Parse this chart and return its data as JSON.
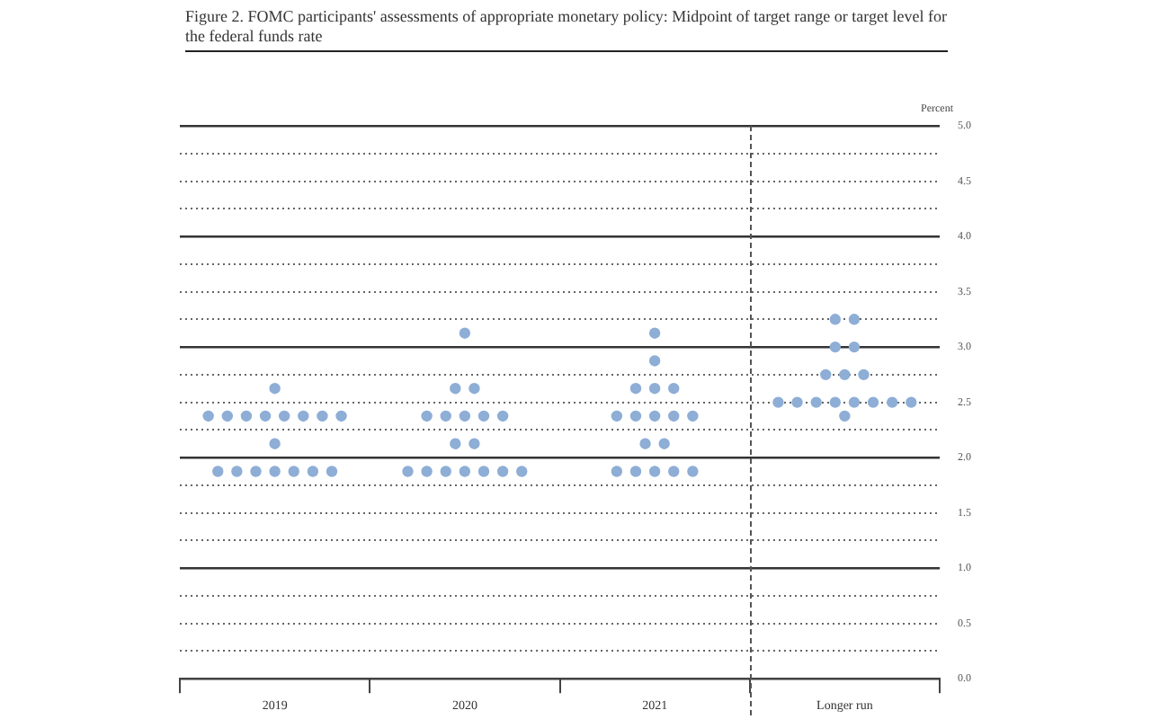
{
  "chart_data": {
    "type": "scatter",
    "title": "Figure 2. FOMC participants' assessments of appropriate monetary policy: Midpoint of target range or target level for the federal funds rate",
    "ylabel": "Percent",
    "categories": [
      "2019",
      "2020",
      "2021",
      "Longer run"
    ],
    "series": [
      {
        "color": "#8eaed6",
        "values": [
          2.625,
          3.125,
          3.125,
          3.25
        ]
      },
      {
        "color": "#8eaed6",
        "values": [
          2.375,
          2.625,
          2.875,
          3.25
        ]
      },
      {
        "color": "#8eaed6",
        "values": [
          2.375,
          2.625,
          2.625,
          3
        ]
      },
      {
        "color": "#8eaed6",
        "values": [
          2.375,
          2.375,
          2.625,
          3
        ]
      },
      {
        "color": "#8eaed6",
        "values": [
          2.375,
          2.375,
          2.625,
          2.75
        ]
      },
      {
        "color": "#8eaed6",
        "values": [
          2.375,
          2.375,
          2.375,
          2.75
        ]
      },
      {
        "color": "#8eaed6",
        "values": [
          2.375,
          2.375,
          2.375,
          2.75
        ]
      },
      {
        "color": "#8eaed6",
        "values": [
          2.375,
          2.375,
          2.375,
          2.5
        ]
      },
      {
        "color": "#8eaed6",
        "values": [
          2.375,
          2.125,
          2.375,
          2.5
        ]
      },
      {
        "color": "#8eaed6",
        "values": [
          2.125,
          2.125,
          2.375,
          2.5
        ]
      },
      {
        "color": "#8eaed6",
        "values": [
          1.875,
          1.875,
          2.125,
          2.5
        ]
      },
      {
        "color": "#8eaed6",
        "values": [
          1.875,
          1.875,
          2.125,
          2.5
        ]
      },
      {
        "color": "#8eaed6",
        "values": [
          1.875,
          1.875,
          1.875,
          2.5
        ]
      },
      {
        "color": "#8eaed6",
        "values": [
          1.875,
          1.875,
          1.875,
          2.5
        ]
      },
      {
        "color": "#8eaed6",
        "values": [
          1.875,
          1.875,
          1.875,
          2.5
        ]
      },
      {
        "color": "#8eaed6",
        "values": [
          1.875,
          1.875,
          1.875,
          2.375
        ]
      },
      {
        "color": "#8eaed6",
        "values": [
          1.875,
          1.875,
          1.875,
          null
        ]
      }
    ],
    "marker": "circle",
    "grid": "y",
    "ylim": [
      0,
      5
    ],
    "yticks": [
      {
        "value": 0,
        "label": "0.0"
      },
      {
        "value": 0.25,
        "label": null
      },
      {
        "value": 0.5,
        "label": "0.5"
      },
      {
        "value": 0.75,
        "label": null
      },
      {
        "value": 1,
        "label": "1.0"
      },
      {
        "value": 1.25,
        "label": null
      },
      {
        "value": 1.5,
        "label": "1.5"
      },
      {
        "value": 1.75,
        "label": null
      },
      {
        "value": 2,
        "label": "2.0"
      },
      {
        "value": 2.25,
        "label": null
      },
      {
        "value": 2.5,
        "label": "2.5"
      },
      {
        "value": 2.75,
        "label": null
      },
      {
        "value": 3,
        "label": "3.0"
      },
      {
        "value": 3.25,
        "label": null
      },
      {
        "value": 3.5,
        "label": "3.5"
      },
      {
        "value": 3.75,
        "label": null
      },
      {
        "value": 4,
        "label": "4.0"
      },
      {
        "value": 4.25,
        "label": null
      },
      {
        "value": 4.5,
        "label": "4.5"
      },
      {
        "value": 4.75,
        "label": null
      },
      {
        "value": 5,
        "label": "5.0"
      }
    ]
  }
}
